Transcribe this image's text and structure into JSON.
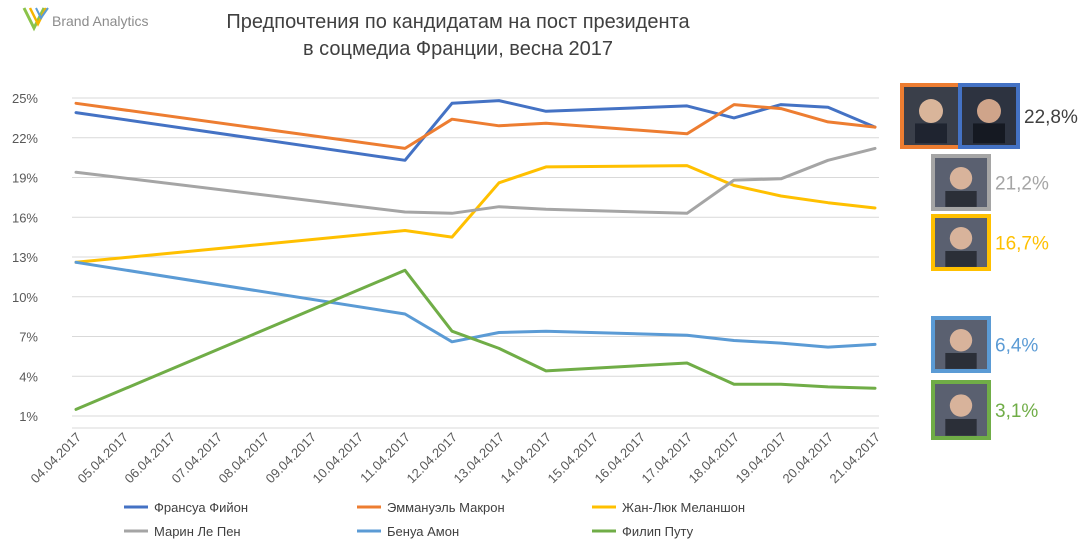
{
  "logo": {
    "text": "Brand Analytics"
  },
  "chart_data": {
    "type": "line",
    "title": "Предпочтения по кандидатам на пост президента",
    "subtitle": "в соцмедиа Франции, весна 2017",
    "xlabel": "",
    "ylabel": "",
    "x": [
      "04.04.2017",
      "05.04.2017",
      "06.04.2017",
      "07.04.2017",
      "08.04.2017",
      "09.04.2017",
      "10.04.2017",
      "11.04.2017",
      "12.04.2017",
      "13.04.2017",
      "14.04.2017",
      "15.04.2017",
      "16.04.2017",
      "17.04.2017",
      "18.04.2017",
      "19.04.2017",
      "20.04.2017",
      "21.04.2017"
    ],
    "yticks": [
      "25%",
      "22%",
      "19%",
      "16%",
      "13%",
      "10%",
      "7%",
      "4%",
      "1%"
    ],
    "ylim": [
      1,
      25
    ],
    "grid": true,
    "legend_position": "bottom",
    "series": [
      {
        "name": "Франсуа Фийон",
        "color": "#4472C4",
        "points": [
          [
            0,
            23.9
          ],
          [
            7,
            20.3
          ],
          [
            8,
            24.6
          ],
          [
            9,
            24.8
          ],
          [
            10,
            24.0
          ],
          [
            13,
            24.4
          ],
          [
            14,
            23.5
          ],
          [
            15,
            24.5
          ],
          [
            16,
            24.3
          ],
          [
            17,
            22.8
          ]
        ]
      },
      {
        "name": "Эммануэль Макрон",
        "color": "#ED7D31",
        "points": [
          [
            0,
            24.6
          ],
          [
            7,
            21.2
          ],
          [
            8,
            23.4
          ],
          [
            9,
            22.9
          ],
          [
            10,
            23.1
          ],
          [
            13,
            22.3
          ],
          [
            14,
            24.5
          ],
          [
            15,
            24.2
          ],
          [
            16,
            23.2
          ],
          [
            17,
            22.8
          ]
        ]
      },
      {
        "name": "Жан-Люк Меланшон",
        "color": "#FFC000",
        "points": [
          [
            0,
            12.6
          ],
          [
            7,
            15.0
          ],
          [
            8,
            14.5
          ],
          [
            9,
            18.6
          ],
          [
            10,
            19.8
          ],
          [
            13,
            19.9
          ],
          [
            14,
            18.4
          ],
          [
            15,
            17.6
          ],
          [
            16,
            17.1
          ],
          [
            17,
            16.7
          ]
        ]
      },
      {
        "name": "Марин Ле Пен",
        "color": "#A5A5A5",
        "points": [
          [
            0,
            19.4
          ],
          [
            7,
            16.4
          ],
          [
            8,
            16.3
          ],
          [
            9,
            16.8
          ],
          [
            10,
            16.6
          ],
          [
            13,
            16.3
          ],
          [
            14,
            18.8
          ],
          [
            15,
            18.9
          ],
          [
            16,
            20.3
          ],
          [
            17,
            21.2
          ]
        ]
      },
      {
        "name": "Бенуа Амон",
        "color": "#5B9BD5",
        "points": [
          [
            0,
            12.6
          ],
          [
            7,
            8.7
          ],
          [
            8,
            6.6
          ],
          [
            9,
            7.3
          ],
          [
            10,
            7.4
          ],
          [
            13,
            7.1
          ],
          [
            14,
            6.7
          ],
          [
            15,
            6.5
          ],
          [
            16,
            6.2
          ],
          [
            17,
            6.4
          ]
        ]
      },
      {
        "name": "Филип Путу",
        "color": "#70AD47",
        "points": [
          [
            0,
            1.5
          ],
          [
            7,
            12.0
          ],
          [
            8,
            7.4
          ],
          [
            9,
            6.1
          ],
          [
            10,
            4.4
          ],
          [
            13,
            5.0
          ],
          [
            14,
            3.4
          ],
          [
            15,
            3.4
          ],
          [
            16,
            3.2
          ],
          [
            17,
            3.1
          ]
        ]
      }
    ],
    "callouts": [
      {
        "label": "22,8%",
        "color": "#404040",
        "photo_icon": "macron-fillon-photo-icon",
        "frame_colors": [
          "#ED7D31",
          "#4472C4"
        ]
      },
      {
        "label": "21,2%",
        "color": "#A5A5A5",
        "photo_icon": "le-pen-photo-icon",
        "frame_colors": [
          "#A5A5A5"
        ]
      },
      {
        "label": "16,7%",
        "color": "#FFC000",
        "photo_icon": "melenchon-photo-icon",
        "frame_colors": [
          "#FFC000"
        ]
      },
      {
        "label": "6,4%",
        "color": "#5B9BD5",
        "photo_icon": "hamon-photo-icon",
        "frame_colors": [
          "#5B9BD5"
        ]
      },
      {
        "label": "3,1%",
        "color": "#70AD47",
        "photo_icon": "poutou-photo-icon",
        "frame_colors": [
          "#70AD47"
        ]
      }
    ]
  }
}
